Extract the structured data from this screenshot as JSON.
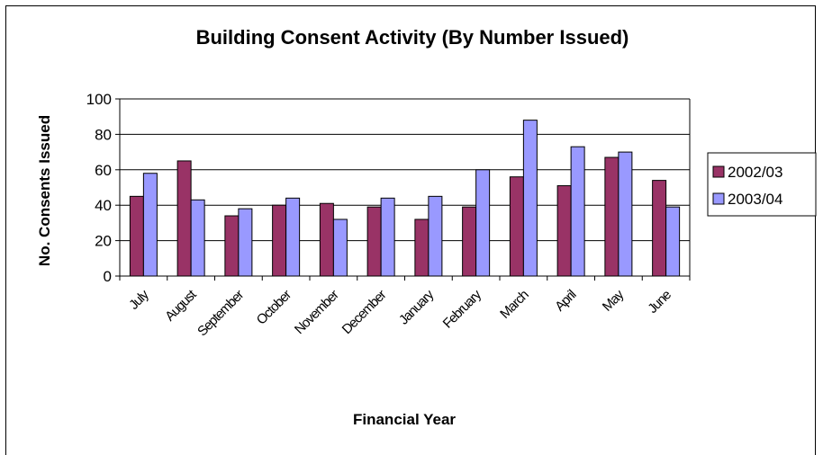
{
  "chart_data": {
    "type": "bar",
    "title": "Building Consent Activity (By Number Issued)",
    "xlabel": "Financial Year",
    "ylabel": "No. Consents Issued",
    "ylim": [
      0,
      100
    ],
    "yticks": [
      0,
      20,
      40,
      60,
      80,
      100
    ],
    "categories": [
      "July",
      "August",
      "September",
      "October",
      "November",
      "December",
      "January",
      "February",
      "March",
      "April",
      "May",
      "June"
    ],
    "series": [
      {
        "name": "2002/03",
        "color": "#993366",
        "values": [
          45,
          65,
          34,
          40,
          41,
          39,
          32,
          39,
          56,
          51,
          67,
          54
        ]
      },
      {
        "name": "2003/04",
        "color": "#9999FF",
        "values": [
          58,
          43,
          38,
          44,
          32,
          44,
          45,
          60,
          88,
          73,
          70,
          39
        ]
      }
    ],
    "grid": true,
    "legend": "right"
  }
}
